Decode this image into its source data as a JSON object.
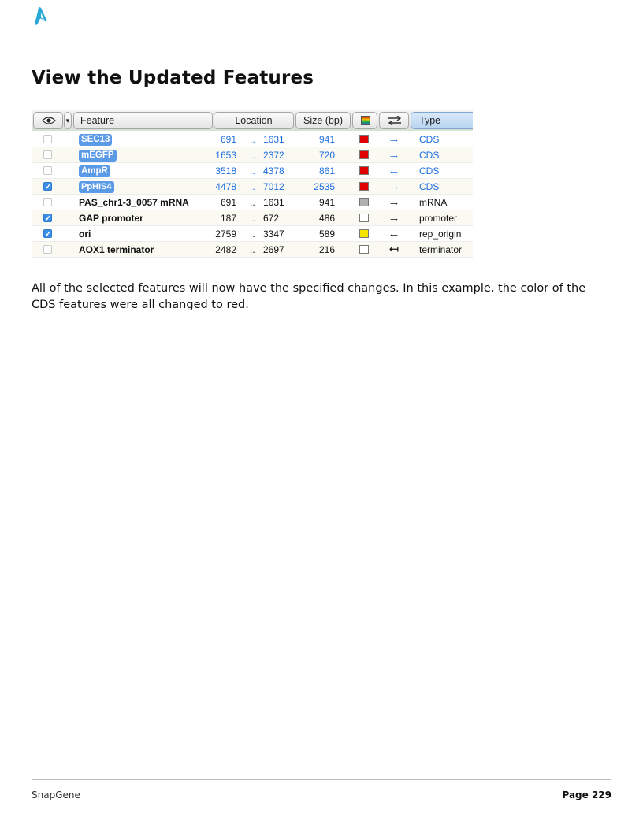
{
  "heading": "View the Updated Features",
  "table": {
    "headers": {
      "visibility_dropdown": "▾",
      "feature": "Feature",
      "location": "Location",
      "size": "Size (bp)",
      "type": "Type"
    },
    "rows": [
      {
        "checked": false,
        "feature": "SEC13",
        "highlighted": true,
        "start": "691",
        "end": "1631",
        "size": "941",
        "color": "#e00000",
        "direction": "forward",
        "arrow": "→",
        "type": "CDS"
      },
      {
        "checked": false,
        "feature": "mEGFP",
        "highlighted": true,
        "start": "1653",
        "end": "2372",
        "size": "720",
        "color": "#e00000",
        "direction": "forward",
        "arrow": "→",
        "type": "CDS"
      },
      {
        "checked": false,
        "feature": "AmpR",
        "highlighted": true,
        "start": "3518",
        "end": "4378",
        "size": "861",
        "color": "#e00000",
        "direction": "reverse",
        "arrow": "←",
        "type": "CDS"
      },
      {
        "checked": true,
        "feature": "PpHIS4",
        "highlighted": true,
        "start": "4478",
        "end": "7012",
        "size": "2535",
        "color": "#e00000",
        "direction": "forward",
        "arrow": "→",
        "type": "CDS"
      },
      {
        "checked": false,
        "feature": "PAS_chr1-3_0057 mRNA",
        "highlighted": false,
        "start": "691",
        "end": "1631",
        "size": "941",
        "color": "#b0b0b0",
        "direction": "forward",
        "arrow": "→",
        "type": "mRNA"
      },
      {
        "checked": true,
        "feature": "GAP promoter",
        "highlighted": false,
        "start": "187",
        "end": "672",
        "size": "486",
        "color": "#ffffff",
        "direction": "forward",
        "arrow": "→",
        "type": "promoter"
      },
      {
        "checked": true,
        "feature": "ori",
        "highlighted": false,
        "start": "2759",
        "end": "3347",
        "size": "589",
        "color": "#f5e400",
        "direction": "reverse",
        "arrow": "←",
        "type": "rep_origin"
      },
      {
        "checked": false,
        "feature": "AOX1 terminator",
        "highlighted": false,
        "start": "2482",
        "end": "2697",
        "size": "216",
        "color": "#ffffff",
        "direction": "none",
        "arrow": "↤",
        "type": "terminator"
      }
    ]
  },
  "body_text": "All of the selected features will now have the specified changes. In this example, the color of the CDS features were all changed to red.",
  "footer": {
    "left": "SnapGene",
    "right": "Page 229"
  }
}
